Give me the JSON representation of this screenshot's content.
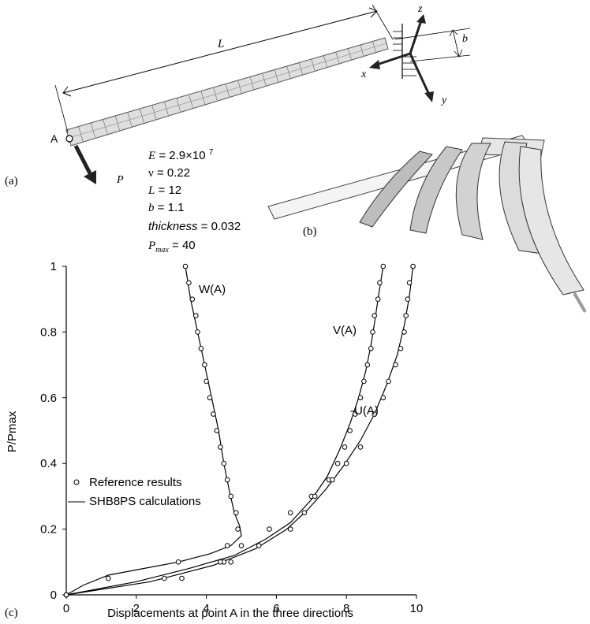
{
  "panel_labels": {
    "a": "(a)",
    "b": "(b)",
    "c": "(c)"
  },
  "diagram": {
    "length_label": "L",
    "width_label": "b",
    "point_label": "A",
    "load_label": "P",
    "axis_labels": {
      "x": "x",
      "y": "y",
      "z": "z"
    }
  },
  "parameters": [
    {
      "name": "E",
      "value": "2.9×10",
      "exponent": "7"
    },
    {
      "name": "ν",
      "value": "0.22"
    },
    {
      "name": "L",
      "value": "12"
    },
    {
      "name": "b",
      "value": "1.1"
    },
    {
      "name": "thickness",
      "value": "0.032"
    },
    {
      "name": "P",
      "subscript": "max",
      "value": "40"
    }
  ],
  "chart_data": {
    "type": "scatter",
    "xlabel": "Displacements at point A in the three directions",
    "ylabel": "P/Pmax",
    "xlim": [
      0,
      10
    ],
    "ylim": [
      0,
      1
    ],
    "x_ticks": [
      "0",
      "2",
      "4",
      "6",
      "8",
      "10"
    ],
    "y_ticks": [
      "0",
      "0.2",
      "0.4",
      "0.6",
      "0.8",
      "1"
    ],
    "legend": {
      "position": "middle-left",
      "entries": [
        "Reference results",
        "SHB8PS calculations"
      ]
    },
    "curve_labels": [
      "W(A)",
      "V(A)",
      "-U(A)"
    ],
    "series": [
      {
        "name": "W(A)",
        "reference_points": [
          [
            0,
            0
          ],
          [
            1.2,
            0.05
          ],
          [
            3.2,
            0.1
          ],
          [
            4.5,
            0.1
          ],
          [
            4.6,
            0.15
          ],
          [
            4.9,
            0.2
          ],
          [
            4.85,
            0.25
          ],
          [
            4.7,
            0.3
          ],
          [
            4.6,
            0.35
          ],
          [
            4.5,
            0.4
          ],
          [
            4.4,
            0.45
          ],
          [
            4.3,
            0.5
          ],
          [
            4.2,
            0.55
          ],
          [
            4.1,
            0.6
          ],
          [
            4.0,
            0.65
          ],
          [
            3.95,
            0.7
          ],
          [
            3.85,
            0.75
          ],
          [
            3.75,
            0.8
          ],
          [
            3.7,
            0.85
          ],
          [
            3.6,
            0.9
          ],
          [
            3.5,
            0.95
          ],
          [
            3.4,
            1.0
          ]
        ],
        "calculation_curve": [
          [
            0,
            0
          ],
          [
            0.5,
            0.03
          ],
          [
            1.2,
            0.06
          ],
          [
            2.2,
            0.08
          ],
          [
            3.2,
            0.1
          ],
          [
            4.1,
            0.125
          ],
          [
            4.7,
            0.15
          ],
          [
            5.0,
            0.18
          ],
          [
            4.95,
            0.21
          ],
          [
            4.8,
            0.25
          ],
          [
            4.65,
            0.32
          ],
          [
            4.5,
            0.4
          ],
          [
            4.35,
            0.5
          ],
          [
            4.15,
            0.6
          ],
          [
            3.95,
            0.7
          ],
          [
            3.75,
            0.8
          ],
          [
            3.55,
            0.9
          ],
          [
            3.4,
            1.0
          ]
        ]
      },
      {
        "name": "V(A)",
        "reference_points": [
          [
            0,
            0
          ],
          [
            2.8,
            0.05
          ],
          [
            4.4,
            0.1
          ],
          [
            5.0,
            0.15
          ],
          [
            5.8,
            0.2
          ],
          [
            6.4,
            0.25
          ],
          [
            7.0,
            0.3
          ],
          [
            7.5,
            0.35
          ],
          [
            7.75,
            0.4
          ],
          [
            7.95,
            0.45
          ],
          [
            8.1,
            0.5
          ],
          [
            8.25,
            0.55
          ],
          [
            8.4,
            0.6
          ],
          [
            8.5,
            0.65
          ],
          [
            8.6,
            0.7
          ],
          [
            8.7,
            0.75
          ],
          [
            8.75,
            0.8
          ],
          [
            8.8,
            0.85
          ],
          [
            8.9,
            0.9
          ],
          [
            8.95,
            0.95
          ],
          [
            9.05,
            1.0
          ]
        ]
      },
      {
        "name": "-U(A)",
        "reference_points": [
          [
            0,
            0
          ],
          [
            3.3,
            0.05
          ],
          [
            4.7,
            0.1
          ],
          [
            5.5,
            0.15
          ],
          [
            6.4,
            0.2
          ],
          [
            6.8,
            0.25
          ],
          [
            7.1,
            0.3
          ],
          [
            7.6,
            0.35
          ],
          [
            8.0,
            0.4
          ],
          [
            8.4,
            0.45
          ],
          [
            8.8,
            0.55
          ],
          [
            9.05,
            0.6
          ],
          [
            9.2,
            0.65
          ],
          [
            9.4,
            0.7
          ],
          [
            9.55,
            0.75
          ],
          [
            9.65,
            0.8
          ],
          [
            9.7,
            0.85
          ],
          [
            9.75,
            0.9
          ],
          [
            9.8,
            0.95
          ],
          [
            9.9,
            1.0
          ]
        ]
      }
    ],
    "calculation_curves_shared": [
      {
        "name": "V(A)",
        "points": [
          [
            0,
            0
          ],
          [
            2.0,
            0.04
          ],
          [
            3.5,
            0.08
          ],
          [
            4.8,
            0.12
          ],
          [
            5.7,
            0.17
          ],
          [
            6.4,
            0.22
          ],
          [
            7.0,
            0.29
          ],
          [
            7.45,
            0.36
          ],
          [
            7.8,
            0.44
          ],
          [
            8.1,
            0.52
          ],
          [
            8.35,
            0.6
          ],
          [
            8.55,
            0.68
          ],
          [
            8.7,
            0.76
          ],
          [
            8.82,
            0.84
          ],
          [
            8.93,
            0.92
          ],
          [
            9.05,
            1.0
          ]
        ]
      },
      {
        "name": "-U(A)",
        "points": [
          [
            0,
            0
          ],
          [
            2.4,
            0.04
          ],
          [
            4.2,
            0.09
          ],
          [
            5.4,
            0.14
          ],
          [
            6.3,
            0.2
          ],
          [
            6.9,
            0.26
          ],
          [
            7.4,
            0.32
          ],
          [
            7.9,
            0.39
          ],
          [
            8.4,
            0.47
          ],
          [
            8.8,
            0.55
          ],
          [
            9.15,
            0.64
          ],
          [
            9.45,
            0.73
          ],
          [
            9.65,
            0.82
          ],
          [
            9.8,
            0.91
          ],
          [
            9.9,
            1.0
          ]
        ]
      }
    ]
  }
}
